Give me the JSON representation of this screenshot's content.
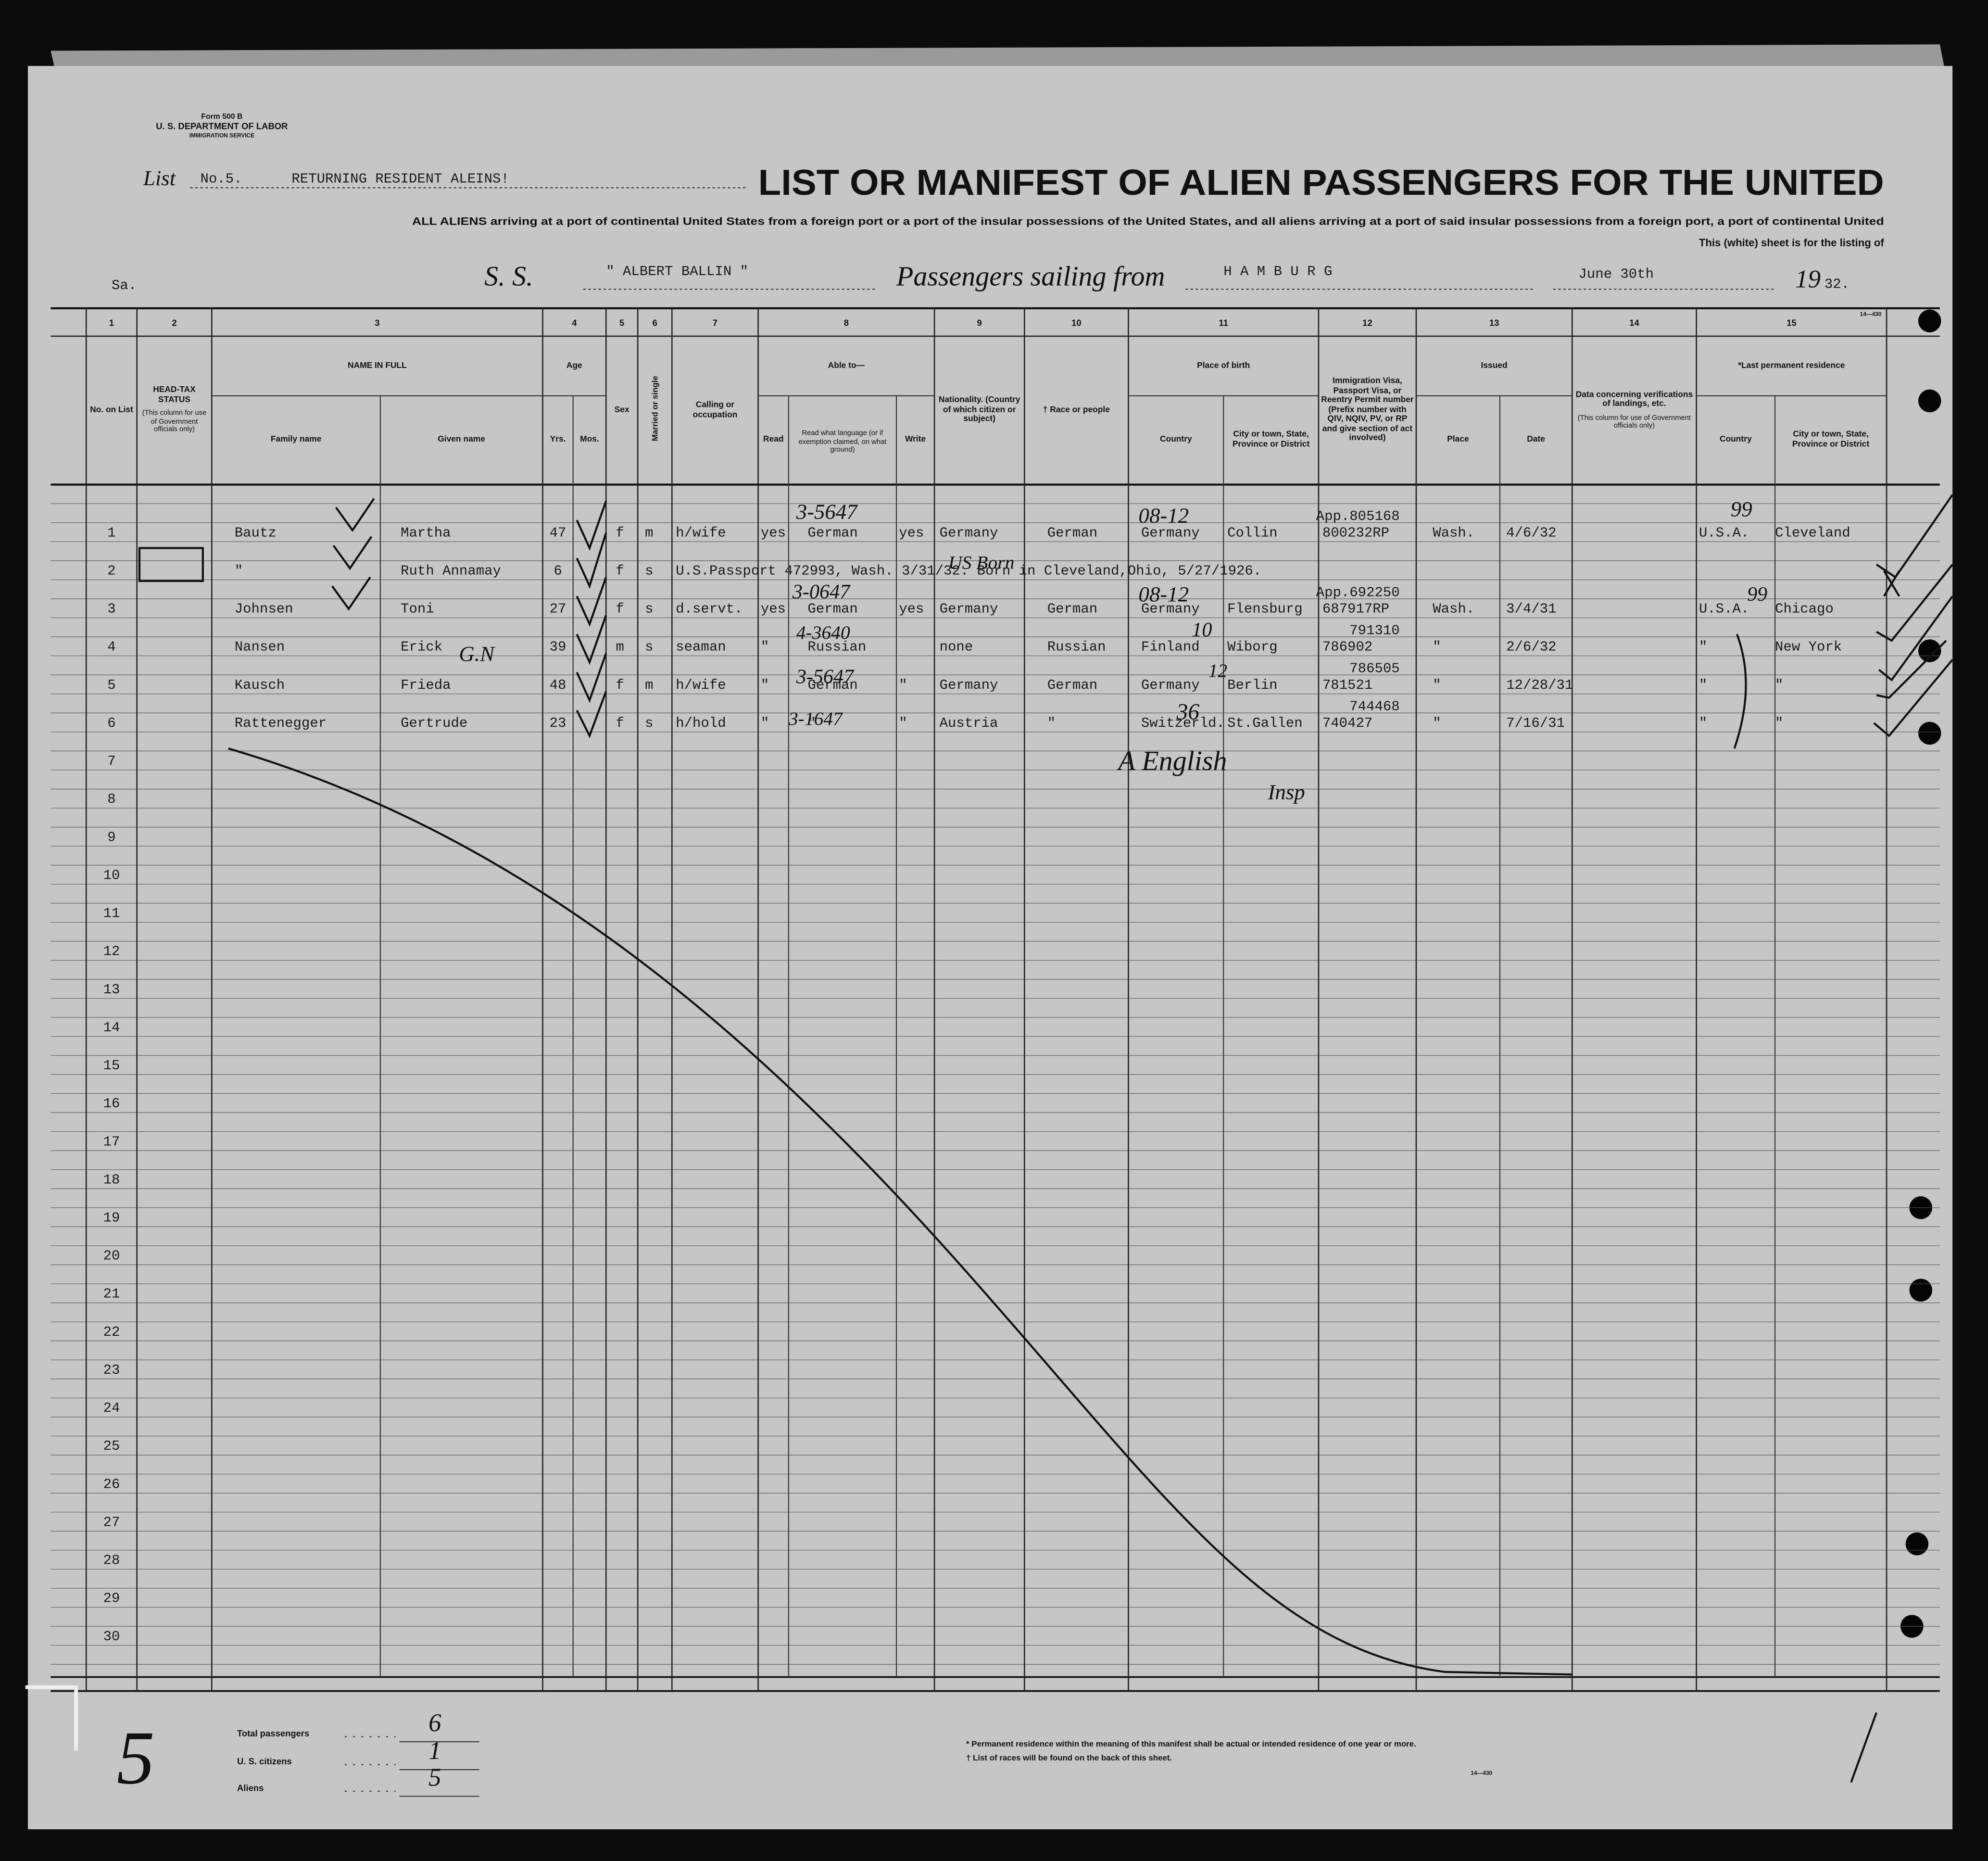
{
  "header": {
    "form": "Form 500 B",
    "department": "U. S. DEPARTMENT OF LABOR",
    "service": "IMMIGRATION SERVICE",
    "list_label": "List",
    "list_no": "No.5.",
    "list_type": "RETURNING RESIDENT ALEINS!",
    "title": "LIST OR MANIFEST OF ALIEN PASSENGERS FOR THE UNITED",
    "instructions": "ALL ALIENS arriving at a port of continental United States from a foreign port or a port of the insular possessions of the United States, and all aliens arriving at a port of said insular possessions from a foreign port, a port of continental United",
    "sheet_note": "This (white) sheet is for the listing of",
    "sa": "Sa.",
    "ss_label": "S. S.",
    "ship": "\" ALBERT BALLIN \"",
    "sailing_label": "Passengers sailing from",
    "port": "H A M B U R G",
    "date": "June 30th",
    "year_printed": "19",
    "year_typed": "32.",
    "form_code": "14—430"
  },
  "columns": [
    {
      "number": 1,
      "label": "No. on List"
    },
    {
      "number": 2,
      "label": "HEAD-TAX STATUS",
      "note": "(This column for use of Government officials only)"
    },
    {
      "number": 3,
      "label": "NAME IN FULL",
      "sub": [
        "Family name",
        "Given name"
      ]
    },
    {
      "number": 4,
      "label": "Age",
      "sub": [
        "Yrs.",
        "Mos."
      ]
    },
    {
      "number": 5,
      "label": "Sex"
    },
    {
      "number": 6,
      "label": "Married or single"
    },
    {
      "number": 7,
      "label": "Calling or occupation"
    },
    {
      "number": 8,
      "label": "Able to—",
      "sub": [
        "Read",
        "Read what language (or if exemption claimed, on what ground)",
        "Write"
      ]
    },
    {
      "number": 9,
      "label": "Nationality. (Country of which citizen or subject)"
    },
    {
      "number": 10,
      "label": "† Race or people"
    },
    {
      "number": 11,
      "label": "Place of birth",
      "sub": [
        "Country",
        "City or town, State, Province or District"
      ]
    },
    {
      "number": 12,
      "label": "Immigration Visa, Passport Visa, or Reentry Permit number (Prefix number with QIV, NQIV, PV, or RP and give section of act involved)"
    },
    {
      "number": 13,
      "label": "Issued",
      "sub": [
        "Place",
        "Date"
      ]
    },
    {
      "number": 14,
      "label": "Data concerning verifications of landings, etc.",
      "note": "(This column for use of Government officials only)"
    },
    {
      "number": 15,
      "label": "*Last permanent residence",
      "sub": [
        "Country",
        "City or town, State, Province or District"
      ]
    }
  ],
  "row_numbers": [
    1,
    2,
    3,
    4,
    5,
    6,
    7,
    8,
    9,
    10,
    11,
    12,
    13,
    14,
    15,
    16,
    17,
    18,
    19,
    20,
    21,
    22,
    23,
    24,
    25,
    26,
    27,
    28,
    29,
    30
  ],
  "passengers": [
    {
      "family": "Bautz",
      "given": "Martha",
      "yrs": 47,
      "sex": "f",
      "marital": "m",
      "occupation": "h/wife",
      "read": "yes",
      "language": "German",
      "write": "yes",
      "nationality": "Germany",
      "race": "German",
      "birth_country": "Germany",
      "birth_city": "Collin",
      "visa_pre": "App.805168",
      "visa": "800232RP",
      "place": "Wash.",
      "date": "4/6/32",
      "res_country": "U.S.A.",
      "res_city": "Cleveland"
    },
    {
      "family": "\"",
      "given": "Ruth Annamay",
      "yrs": 6,
      "sex": "f",
      "marital": "s",
      "remark": "U.S.Passport 472993, Wash. 3/31/32. Born in Cleveland,Ohio, 5/27/1926."
    },
    {
      "family": "Johnsen",
      "given": "Toni",
      "yrs": 27,
      "sex": "f",
      "marital": "s",
      "occupation": "d.servt.",
      "read": "yes",
      "language": "German",
      "write": "yes",
      "nationality": "Germany",
      "race": "German",
      "birth_country": "Germany",
      "birth_city": "Flensburg",
      "visa_pre": "App.692250",
      "visa": "687917RP",
      "place": "Wash.",
      "date": "3/4/31",
      "res_country": "U.S.A.",
      "res_city": "Chicago"
    },
    {
      "family": "Nansen",
      "given": "Erick",
      "yrs": 39,
      "sex": "m",
      "marital": "s",
      "occupation": "seaman",
      "read": "\"",
      "language": "Russian",
      "nationality": "none",
      "race": "Russian",
      "birth_country": "Finland",
      "birth_city": "Wiborg",
      "visa_pre": "791310",
      "visa": "786902",
      "place": "\"",
      "date": "2/6/32",
      "res_country": "\"",
      "res_city": "New York"
    },
    {
      "family": "Kausch",
      "given": "Frieda",
      "yrs": 48,
      "sex": "f",
      "marital": "m",
      "occupation": "h/wife",
      "read": "\"",
      "language": "German",
      "write": "\"",
      "nationality": "Germany",
      "race": "German",
      "birth_country": "Germany",
      "birth_city": "Berlin",
      "visa_pre": "786505",
      "visa": "781521",
      "place": "\"",
      "date": "12/28/31",
      "res_country": "\"",
      "res_city": "\""
    },
    {
      "family": "Rattenegger",
      "given": "Gertrude",
      "yrs": 23,
      "sex": "f",
      "marital": "s",
      "occupation": "h/hold",
      "read": "\"",
      "language": "\"",
      "write": "\"",
      "nationality": "Austria",
      "race": "\"",
      "birth_country": "Switzerld.",
      "birth_city": "St.Gallen",
      "visa_pre": "744468",
      "visa": "740427",
      "place": "\"",
      "date": "7/16/31",
      "res_country": "\"",
      "res_city": "\""
    }
  ],
  "annotations": [
    "3-5647",
    "08-12",
    "US Born",
    "3-0647",
    "08-12",
    "4-3640",
    "10",
    "G.N",
    "3-5647",
    "12",
    "36",
    "3-1647",
    "99",
    "99",
    "A English",
    "Insp",
    "5"
  ],
  "footer": {
    "total_label": "Total passengers",
    "total": "6",
    "citizens_label": "U. S. citizens",
    "citizens": "1",
    "aliens_label": "Aliens",
    "aliens": "5",
    "note_residence": "* Permanent residence within the meaning of this manifest shall be actual or intended residence of one year or more.",
    "note_races": "† List of races will be found on the back of this sheet.",
    "form_code": "14—430"
  }
}
